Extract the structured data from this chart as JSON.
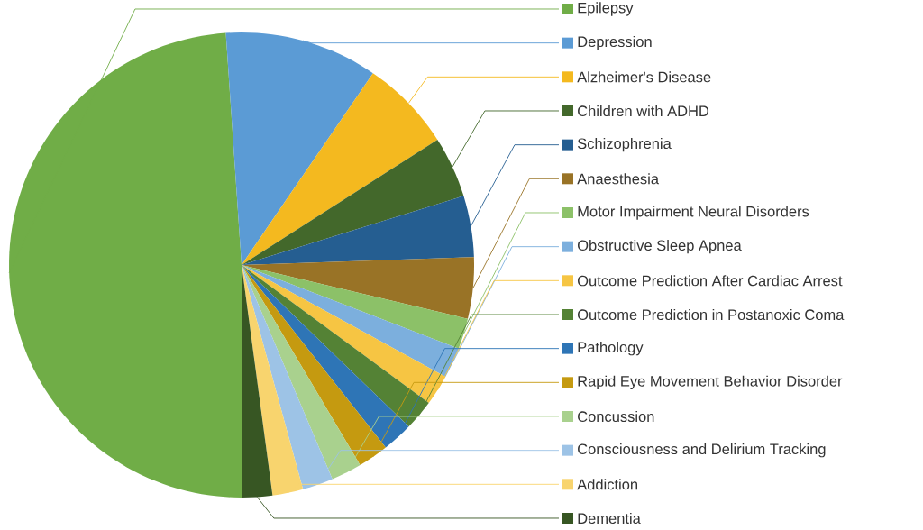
{
  "chart_data": {
    "type": "pie",
    "legend": "right",
    "categories": [
      "Epilepsy",
      "Depression",
      "Alzheimer's Disease",
      "Children with ADHD",
      "Schizophrenia",
      "Anaesthesia",
      "Motor Impairment Neural Disorders",
      "Obstructive Sleep Apnea",
      "Outcome Prediction After Cardiac Arrest",
      "Outcome Prediction in Postanoxic Coma",
      "Pathology",
      "Rapid Eye Movement Behavior Disorder",
      "Concussion",
      "Consciousness and Delirium Tracking",
      "Addiction",
      "Dementia"
    ],
    "values": [
      48.92,
      10.64,
      6.38,
      4.26,
      4.26,
      4.26,
      2.128,
      2.128,
      2.128,
      2.128,
      2.128,
      2.128,
      2.128,
      2.128,
      2.128,
      2.128
    ],
    "colors": [
      "#70ad47",
      "#5b9bd5",
      "#f4b91f",
      "#43682b",
      "#255e91",
      "#997326",
      "#8cc168",
      "#7cafdd",
      "#f6c543",
      "#548235",
      "#2e75b6",
      "#c59a10",
      "#a9d18e",
      "#9dc3e6",
      "#f8d46e",
      "#375623"
    ]
  }
}
